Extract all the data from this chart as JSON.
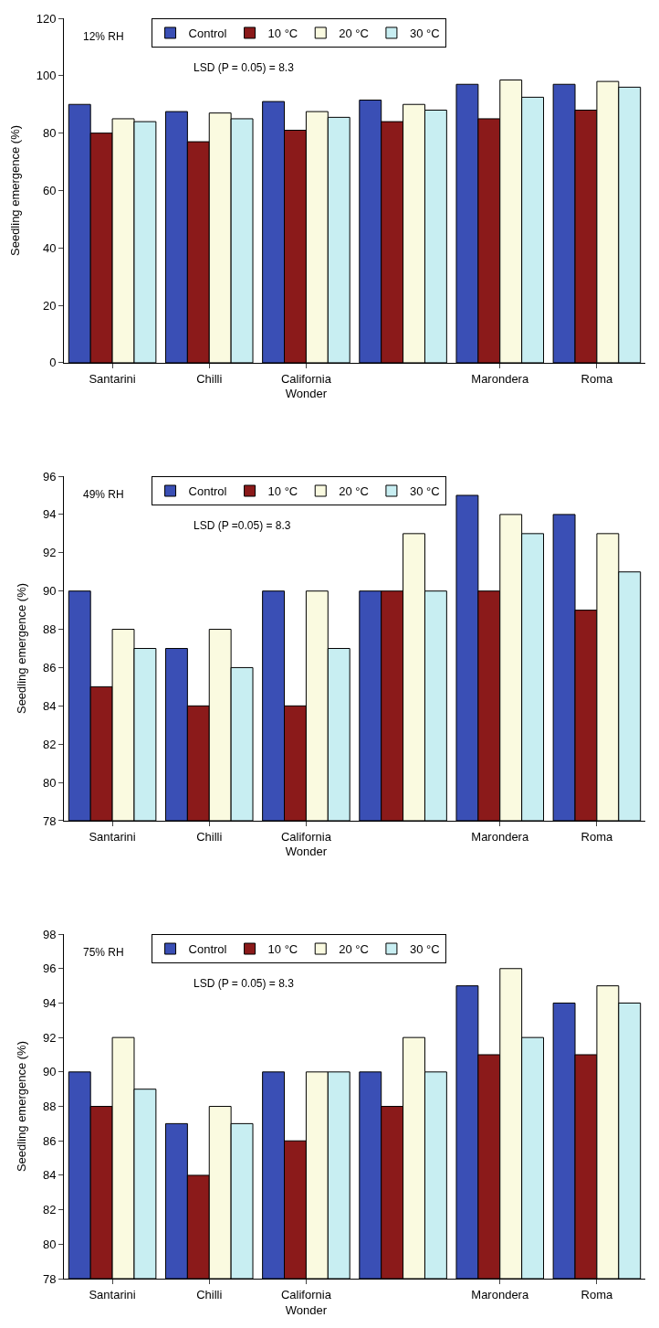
{
  "chart_data": [
    {
      "type": "bar",
      "categories": [
        "Santarini",
        "Chilli",
        "California Wonder",
        null,
        "Marondera",
        "Roma"
      ],
      "ylabel": "Seedling emergence (%)",
      "ylim": [
        0,
        120
      ],
      "yticks": [
        0,
        20,
        40,
        60,
        80,
        100,
        120
      ],
      "legend": "top",
      "annotations": [
        "12% RH",
        "LSD (P = 0.05) = 8.3"
      ],
      "series": [
        {
          "name": "Control",
          "color": "#3a4fb5",
          "values": [
            90,
            87.5,
            91,
            91.5,
            97,
            97
          ]
        },
        {
          "name": "10 °C",
          "color": "#8b1a1a",
          "values": [
            80,
            77,
            81,
            84,
            85,
            88
          ]
        },
        {
          "name": "20 °C",
          "color": "#fafae0",
          "values": [
            85,
            87,
            87.5,
            90,
            98.5,
            98
          ]
        },
        {
          "name": "30 °C",
          "color": "#c8eef2",
          "values": [
            84,
            85,
            85.5,
            88,
            92.5,
            96
          ]
        }
      ]
    },
    {
      "type": "bar",
      "categories": [
        "Santarini",
        "Chilli",
        "California Wonder",
        null,
        "Marondera",
        "Roma"
      ],
      "ylabel": "Seedling emergence (%)",
      "ylim": [
        78,
        96
      ],
      "yticks": [
        78,
        80,
        82,
        84,
        86,
        88,
        90,
        92,
        94,
        96
      ],
      "legend": "top",
      "annotations": [
        "49% RH",
        "LSD (P =0.05) = 8.3"
      ],
      "series": [
        {
          "name": "Control",
          "color": "#3a4fb5",
          "values": [
            90,
            87,
            90,
            90,
            95,
            94
          ]
        },
        {
          "name": "10 °C",
          "color": "#8b1a1a",
          "values": [
            85,
            84,
            84,
            90,
            90,
            89
          ]
        },
        {
          "name": "20 °C",
          "color": "#fafae0",
          "values": [
            88,
            88,
            90,
            93,
            94,
            93
          ]
        },
        {
          "name": "30 °C",
          "color": "#c8eef2",
          "values": [
            87,
            86,
            87,
            90,
            93,
            91
          ]
        }
      ]
    },
    {
      "type": "bar",
      "categories": [
        "Santarini",
        "Chilli",
        "California Wonder",
        null,
        "Marondera",
        "Roma"
      ],
      "ylabel": "Seedling emergence (%)",
      "ylim": [
        78,
        98
      ],
      "yticks": [
        78,
        80,
        82,
        84,
        86,
        88,
        90,
        92,
        94,
        96,
        98
      ],
      "legend": "top",
      "annotations": [
        "75% RH",
        "LSD (P = 0.05) = 8.3"
      ],
      "series": [
        {
          "name": "Control",
          "color": "#3a4fb5",
          "values": [
            90,
            87,
            90,
            90,
            95,
            94
          ]
        },
        {
          "name": "10 °C",
          "color": "#8b1a1a",
          "values": [
            88,
            84,
            86,
            88,
            91,
            91
          ]
        },
        {
          "name": "20 °C",
          "color": "#fafae0",
          "values": [
            92,
            88,
            90,
            92,
            96,
            95
          ]
        },
        {
          "name": "30 °C",
          "color": "#c8eef2",
          "values": [
            89,
            87,
            90,
            90,
            92,
            94
          ]
        }
      ]
    }
  ]
}
